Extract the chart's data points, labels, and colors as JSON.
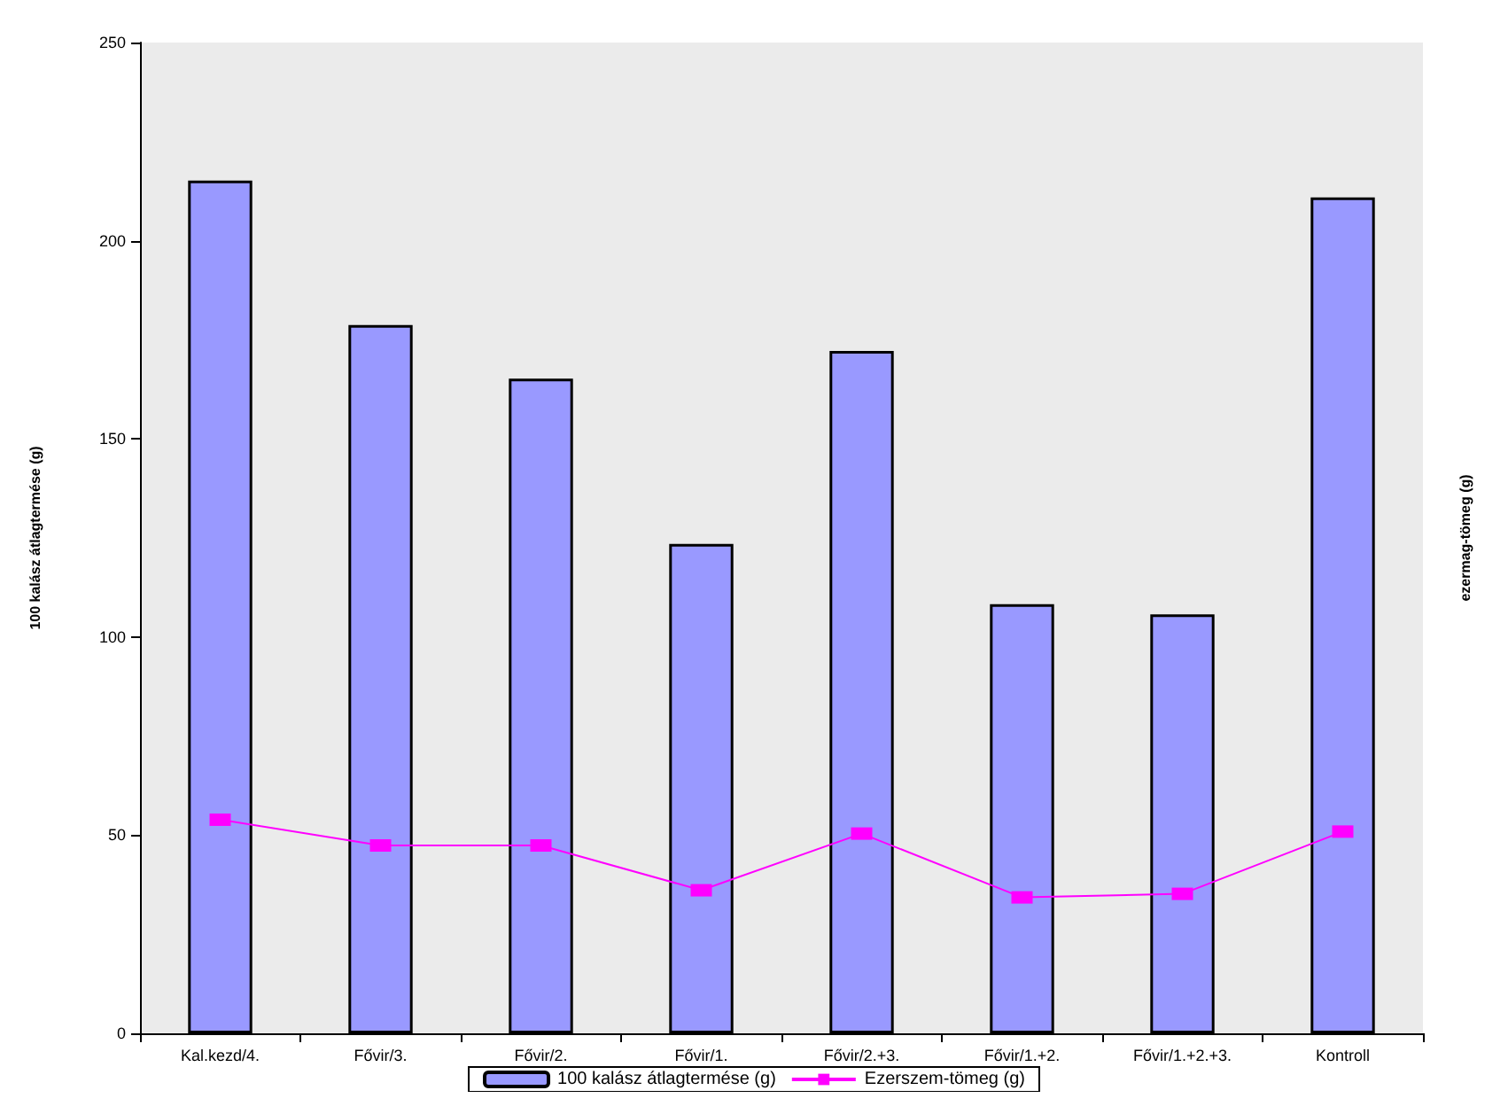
{
  "chart_data": {
    "type": "bar",
    "categories": [
      "Kal.kezd/4.",
      "Fővir/3.",
      "Fővir/2.",
      "Fővir/1.",
      "Fővir/2.+3.",
      "Fővir/1.+2.",
      "Fővir/1.+2.+3.",
      "Kontroll"
    ],
    "series": [
      {
        "name": "100 kalász átlagtermése (g)",
        "color": "#9999ff",
        "values": [
          215.2,
          178.7,
          165.2,
          123.5,
          172.2,
          108.3,
          105.7,
          210.9
        ]
      },
      {
        "name": "Ezerszem-tömeg (g)",
        "type": "line",
        "color": "#ff00ff",
        "marker": "square",
        "values": [
          53.9,
          47.4,
          47.4,
          36.1,
          50.4,
          34.3,
          35.2,
          50.9
        ]
      }
    ],
    "ylabel": "100 kalász átlagtermése (g)",
    "y2label": "ezermag-tömeg (g)",
    "ylim": [
      0,
      250
    ],
    "yticks": [
      0,
      50,
      100,
      150,
      200,
      250
    ],
    "grid": false,
    "legend": "bottom"
  }
}
